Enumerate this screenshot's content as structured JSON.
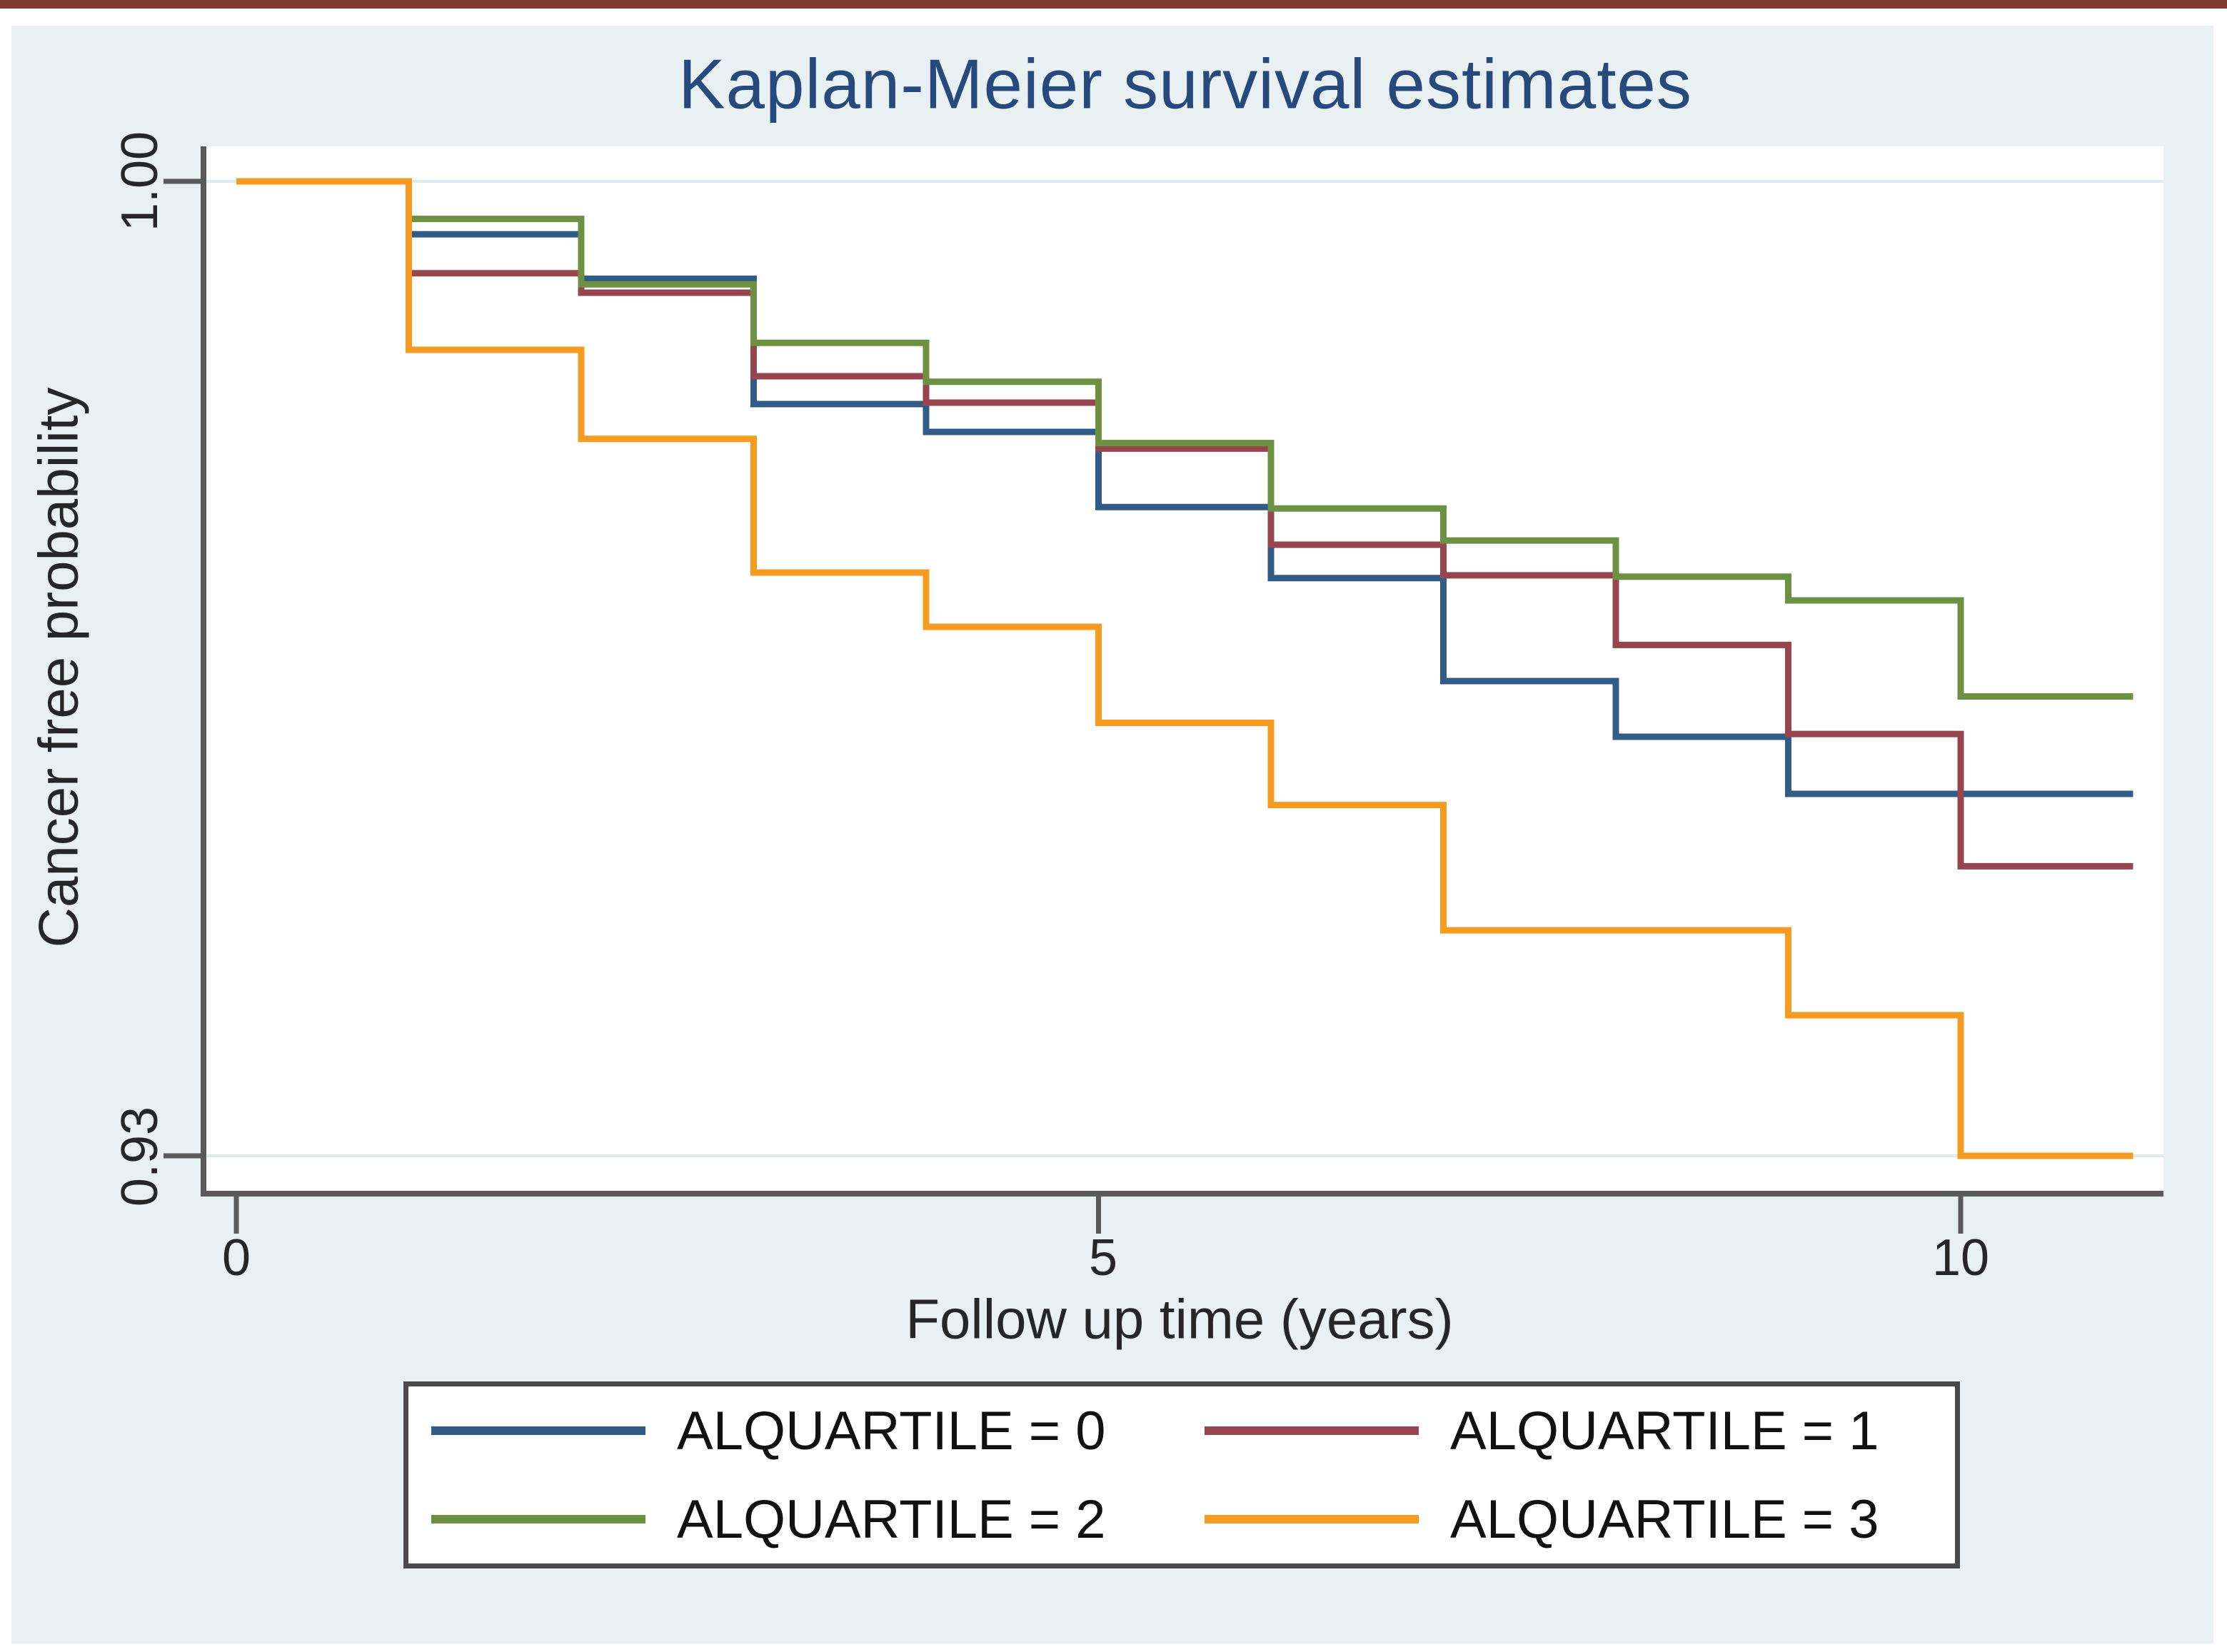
{
  "figure": {
    "title": "Kaplan-Meier survival estimates",
    "title_color": "#264a7d",
    "background_color": "#e9f0f2",
    "plot_background": "#ffffff",
    "top_bar_color": "#823c36",
    "axis_color": "#5a5a5a",
    "gridline_color": "#dfeaee"
  },
  "chart_data": {
    "type": "line",
    "subtype": "kaplan-meier-step",
    "title": "Kaplan-Meier survival estimates",
    "xlabel": "Follow up time (years)",
    "ylabel": "Cancer free probability",
    "xlim": [
      0,
      11.2
    ],
    "ylim": [
      0.9275,
      1.002
    ],
    "grid": "horizontal-at-ticks-only",
    "legend_position": "bottom-center",
    "x_ticks": [
      {
        "t": 0,
        "label": "0"
      },
      {
        "t": 5,
        "label": "5"
      },
      {
        "t": 10,
        "label": "10"
      }
    ],
    "y_ticks": [
      {
        "p": 1.0,
        "label": "1.00"
      },
      {
        "p": 0.93,
        "label": "0.93"
      }
    ],
    "t_end": 11.0,
    "series": [
      {
        "name": "ALQUARTILE = 0",
        "color": "#305c87",
        "steps": [
          [
            0,
            1.0
          ],
          [
            1,
            0.9962
          ],
          [
            2,
            0.993
          ],
          [
            3,
            0.984
          ],
          [
            4,
            0.982
          ],
          [
            5,
            0.9766
          ],
          [
            6,
            0.9715
          ],
          [
            7,
            0.9641
          ],
          [
            8,
            0.9601
          ],
          [
            9,
            0.956
          ]
        ]
      },
      {
        "name": "ALQUARTILE = 1",
        "color": "#97454f",
        "steps": [
          [
            0,
            1.0
          ],
          [
            1,
            0.9934
          ],
          [
            2,
            0.992
          ],
          [
            3,
            0.986
          ],
          [
            4,
            0.9841
          ],
          [
            5,
            0.9808
          ],
          [
            6,
            0.9739
          ],
          [
            7,
            0.9717
          ],
          [
            8,
            0.9667
          ],
          [
            9,
            0.9603
          ],
          [
            10,
            0.9508
          ]
        ]
      },
      {
        "name": "ALQUARTILE = 2",
        "color": "#6e9043",
        "steps": [
          [
            0,
            1.0
          ],
          [
            1,
            0.9973
          ],
          [
            2,
            0.9926
          ],
          [
            3,
            0.9884
          ],
          [
            4,
            0.9856
          ],
          [
            5,
            0.9812
          ],
          [
            6,
            0.9765
          ],
          [
            7,
            0.9742
          ],
          [
            8,
            0.9716
          ],
          [
            9,
            0.9699
          ],
          [
            10,
            0.963
          ]
        ]
      },
      {
        "name": "ALQUARTILE = 3",
        "color": "#f59b22",
        "steps": [
          [
            0,
            1.0
          ],
          [
            1,
            0.9879
          ],
          [
            2,
            0.9815
          ],
          [
            3,
            0.9719
          ],
          [
            4,
            0.968
          ],
          [
            5,
            0.9611
          ],
          [
            6,
            0.9552
          ],
          [
            7,
            0.9462
          ],
          [
            9,
            0.9401
          ],
          [
            10,
            0.93
          ]
        ]
      }
    ]
  }
}
